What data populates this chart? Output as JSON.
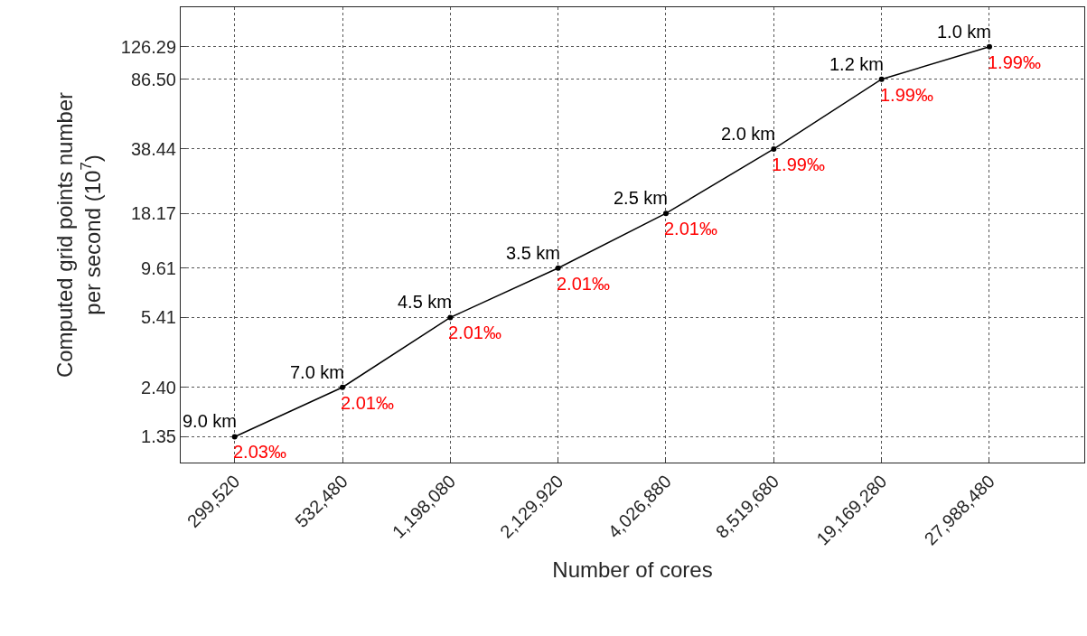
{
  "chart_data": {
    "type": "line",
    "xlabel": "Number of cores",
    "ylabel": "Computed grid points number\nper second (10$^{7}$)",
    "categories": [
      "299,520",
      "532,480",
      "1,198,080",
      "2,129,920",
      "4,026,880",
      "8,519,680",
      "19,169,280",
      "27,988,480"
    ],
    "series": [
      {
        "color": "#000000",
        "values": [
          1.35,
          2.4,
          5.41,
          9.61,
          18.17,
          38.44,
          86.5,
          126.29
        ]
      }
    ],
    "log": "y",
    "ylim": [
      1,
      200
    ],
    "yticks": [
      {
        "value": 1.35,
        "label": "1.35"
      },
      {
        "value": 2.4,
        "label": "2.40"
      },
      {
        "value": 5.41,
        "label": "5.41"
      },
      {
        "value": 9.61,
        "label": "9.61"
      },
      {
        "value": 18.17,
        "label": "18.17"
      },
      {
        "value": 38.44,
        "label": "38.44"
      },
      {
        "value": 86.5,
        "label": "86.50"
      },
      {
        "value": 126.29,
        "label": "126.29"
      }
    ],
    "marker": "circle",
    "line_style": "solid",
    "grid": true,
    "annotations": [
      {
        "text": "9.0 km",
        "x": "299,520",
        "y": 1.35
      },
      {
        "text": "7.0 km",
        "x": "532,480",
        "y": 2.4
      },
      {
        "text": "4.5 km",
        "x": "1,198,080",
        "y": 5.41
      },
      {
        "text": "3.5 km",
        "x": "2,129,920",
        "y": 9.61
      },
      {
        "text": "2.5 km",
        "x": "4,026,880",
        "y": 18.17
      },
      {
        "text": "2.0 km",
        "x": "8,519,680",
        "y": 38.44
      },
      {
        "text": "1.2 km",
        "x": "19,169,280",
        "y": 86.5
      },
      {
        "text": "1.0 km",
        "x": "27,988,480",
        "y": 126.29
      },
      {
        "text": "2.03‰",
        "x": "299,520",
        "y": 1.35
      },
      {
        "text": "2.01‰",
        "x": "532,480",
        "y": 2.4
      },
      {
        "text": "2.01‰",
        "x": "1,198,080",
        "y": 5.41
      },
      {
        "text": "2.01‰",
        "x": "2,129,920",
        "y": 9.61
      },
      {
        "text": "2.01‰",
        "x": "4,026,880",
        "y": 18.17
      },
      {
        "text": "1.99‰",
        "x": "8,519,680",
        "y": 38.44
      },
      {
        "text": "1.99‰",
        "x": "19,169,280",
        "y": 86.5
      },
      {
        "text": "1.99‰",
        "x": "27,988,480",
        "y": 126.29
      }
    ]
  }
}
